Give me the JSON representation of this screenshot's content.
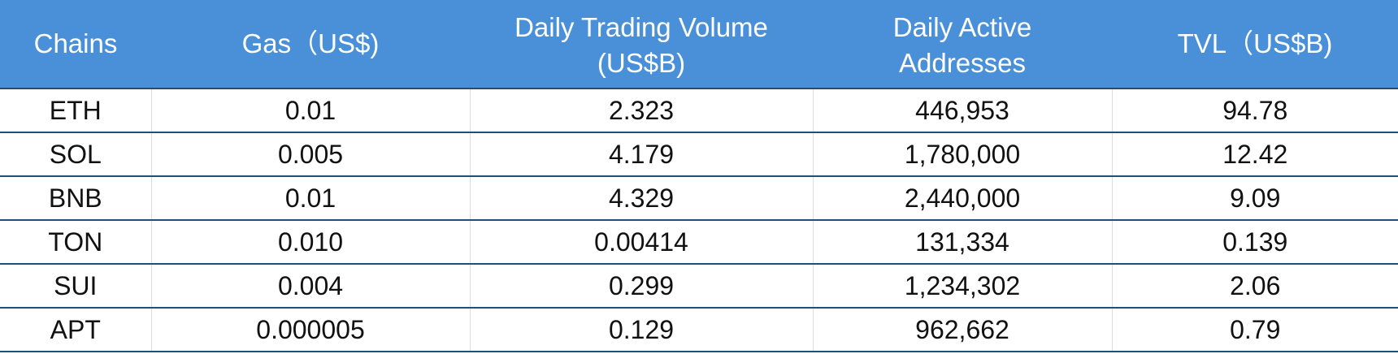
{
  "chart_data": {
    "type": "table",
    "columns": [
      [
        "Chains"
      ],
      [
        "Gas（US$)"
      ],
      [
        "Daily Trading Volume",
        "(US$B)"
      ],
      [
        "Daily Active",
        "Addresses"
      ],
      [
        "TVL（US$B)"
      ]
    ],
    "rows": [
      [
        "ETH",
        "0.01",
        "2.323",
        "446,953",
        "94.78"
      ],
      [
        "SOL",
        "0.005",
        "4.179",
        "1,780,000",
        "12.42"
      ],
      [
        "BNB",
        "0.01",
        "4.329",
        "2,440,000",
        "9.09"
      ],
      [
        "TON",
        "0.010",
        "0.00414",
        "131,334",
        "0.139"
      ],
      [
        "SUI",
        "0.004",
        "0.299",
        "1,234,302",
        "2.06"
      ],
      [
        "APT",
        "0.000005",
        "0.129",
        "962,662",
        "0.79"
      ]
    ]
  },
  "colors": {
    "header_background": "#4a90d8",
    "header_text": "#ffffff",
    "row_separator": "#1f4e79",
    "column_separator": "#dcdcdc",
    "cell_text": "#111111"
  }
}
